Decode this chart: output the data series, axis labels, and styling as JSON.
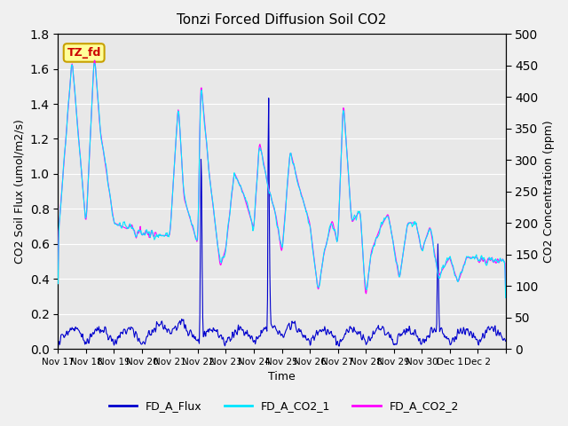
{
  "title": "Tonzi Forced Diffusion Soil CO2",
  "xlabel": "Time",
  "ylabel_left": "CO2 Soil Flux (umol/m2/s)",
  "ylabel_right": "CO2 Concentration (ppm)",
  "ylim_left": [
    0,
    1.8
  ],
  "ylim_right": [
    0,
    500
  ],
  "yticks_left": [
    0.0,
    0.2,
    0.4,
    0.6,
    0.8,
    1.0,
    1.2,
    1.4,
    1.6,
    1.8
  ],
  "yticks_right": [
    0,
    50,
    100,
    150,
    200,
    250,
    300,
    350,
    400,
    450,
    500
  ],
  "xtick_positions": [
    0,
    1,
    2,
    3,
    4,
    5,
    6,
    7,
    8,
    9,
    10,
    11,
    12,
    13,
    14,
    15,
    16
  ],
  "xtick_labels": [
    "Nov 17",
    "Nov 18",
    "Nov 19",
    "Nov 20",
    "Nov 21",
    "Nov 22",
    "Nov 23",
    "Nov 24",
    "Nov 25",
    "Nov 26",
    "Nov 27",
    "Nov 28",
    "Nov 29",
    "Nov 30",
    "Dec 1",
    "Dec 2",
    ""
  ],
  "flux_color": "#0000cd",
  "co2_1_color": "#00e5ff",
  "co2_2_color": "#ff00ff",
  "bg_color": "#f0f0f0",
  "plot_bg_color": "#e8e8e8",
  "grid_color": "#ffffff",
  "tag_text": "TZ_fd",
  "tag_bg": "#ffff99",
  "tag_border": "#c8a000",
  "tag_text_color": "#cc0000",
  "legend_labels": [
    "FD_A_Flux",
    "FD_A_CO2_1",
    "FD_A_CO2_2"
  ],
  "n_days": 16,
  "n_per_day": 48
}
